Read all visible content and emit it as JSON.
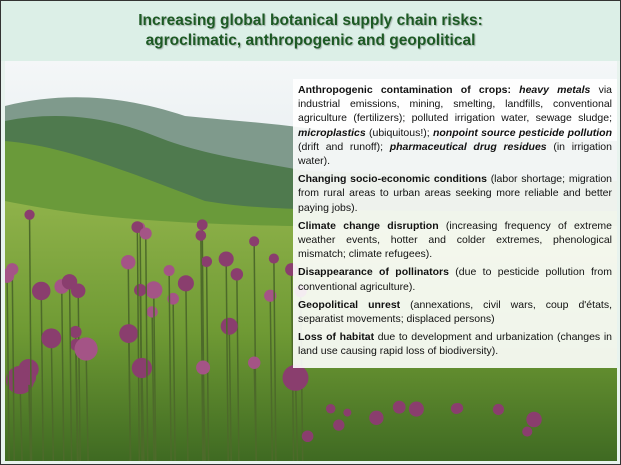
{
  "title": {
    "lines": [
      "Increasing global botanical supply chain risks:",
      "agroclimatic, anthropogenic and geopolitical"
    ]
  },
  "risks": [
    {
      "runs": [
        {
          "text": "Anthropogenic contamination of crops: ",
          "bold": true
        },
        {
          "text": "heavy metals",
          "bold": true,
          "italic": true
        },
        {
          "text": " via industrial emissions, mining, smelting, landfills, conventional agriculture (fertilizers); polluted irrigation water, sewage sludge; "
        },
        {
          "text": "microplastics",
          "bold": true,
          "italic": true
        },
        {
          "text": " (ubiquitous!); "
        },
        {
          "text": "nonpoint source pesticide pollution",
          "bold": true,
          "italic": true
        },
        {
          "text": " (drift and runoff); "
        },
        {
          "text": "pharmaceutical drug residues",
          "bold": true,
          "italic": true
        },
        {
          "text": " (in irrigation water)."
        }
      ]
    },
    {
      "runs": [
        {
          "text": "Changing socio-economic conditions",
          "bold": true
        },
        {
          "text": " (labor shortage; migration from rural areas to urban areas seeking more reliable and better paying jobs)."
        }
      ]
    },
    {
      "runs": [
        {
          "text": "Climate change disruption",
          "bold": true
        },
        {
          "text": " (increasing frequency of extreme weather events, hotter and colder extremes, phenological mismatch; climate refugees)."
        }
      ]
    },
    {
      "runs": [
        {
          "text": "Disappearance of pollinators",
          "bold": true
        },
        {
          "text": " (due to pesticide pollution from conventional agriculture)."
        }
      ]
    },
    {
      "runs": [
        {
          "text": "Geopolitical unrest",
          "bold": true
        },
        {
          "text": " (annexations, civil wars, coup d'états, separatist movements; displaced persons)"
        }
      ]
    },
    {
      "runs": [
        {
          "text": "Loss of habitat",
          "bold": true
        },
        {
          "text": " due to development and urbanization (changes in land use causing rapid loss of biodiversity)."
        }
      ]
    }
  ]
}
